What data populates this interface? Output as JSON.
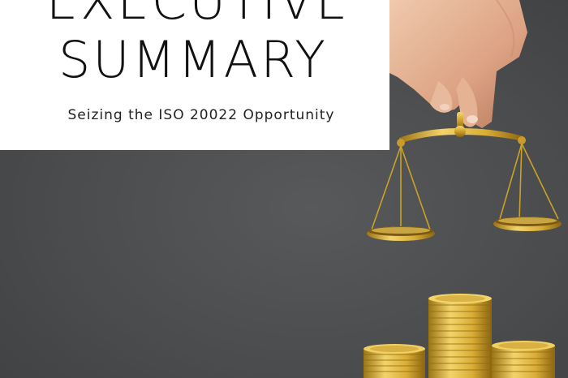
{
  "cover": {
    "title_line1": "EXECUTIVE",
    "title_line2": "SUMMARY",
    "subtitle": "Seizing the ISO 20022 Opportunity"
  },
  "image": {
    "subject": "hand-holding-gold-balance-scale-over-gold-coin-stacks",
    "background_color": "#4d4e4f",
    "accent_gold": "#c9a227"
  }
}
